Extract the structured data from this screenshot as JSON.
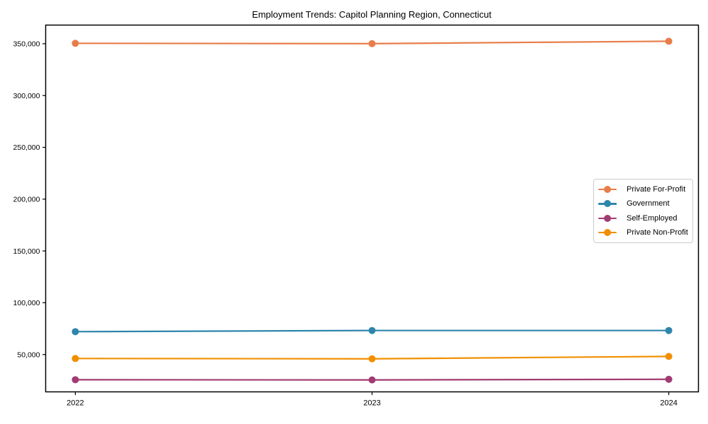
{
  "chart_data": {
    "type": "line",
    "title": "Employment Trends: Capitol Planning Region, Connecticut",
    "xlabel": "",
    "ylabel": "",
    "categories": [
      "2022",
      "2023",
      "2024"
    ],
    "x_values": [
      2022,
      2023,
      2024
    ],
    "xlim": [
      2021.9,
      2024.1
    ],
    "ylim": [
      14000,
      368000
    ],
    "y_ticks": [
      50000,
      100000,
      150000,
      200000,
      250000,
      300000,
      350000
    ],
    "y_tick_labels": [
      "50,000",
      "100,000",
      "150,000",
      "200,000",
      "250,000",
      "300,000",
      "350,000"
    ],
    "grid": false,
    "legend_position": "center right",
    "series": [
      {
        "name": "Private For-Profit",
        "color": "#E87D4A",
        "values": [
          350400,
          350100,
          352400
        ]
      },
      {
        "name": "Government",
        "color": "#2E86AB",
        "values": [
          72100,
          73200,
          73200
        ]
      },
      {
        "name": "Self-Employed",
        "color": "#A23B72",
        "values": [
          25700,
          25500,
          26100
        ]
      },
      {
        "name": "Private Non-Profit",
        "color": "#F18F01",
        "values": [
          46200,
          45900,
          48200
        ]
      }
    ]
  }
}
